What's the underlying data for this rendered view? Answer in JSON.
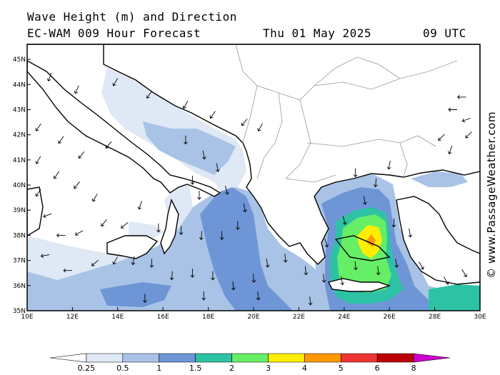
{
  "title": {
    "line1": "Wave Height (m) and Direction",
    "model": "EC-WAM 009 Hour Forecast",
    "date": "Thu 01 May 2025",
    "time": "09 UTC"
  },
  "credit": "© www.PassageWeather.com",
  "map": {
    "lon_range": [
      10,
      30
    ],
    "lat_range": [
      35,
      45.6
    ],
    "lon_ticks": [
      "10E",
      "12E",
      "14E",
      "16E",
      "18E",
      "20E",
      "22E",
      "24E",
      "26E",
      "28E",
      "30E"
    ],
    "lat_ticks": [
      "35N",
      "36N",
      "37N",
      "38N",
      "39N",
      "40N",
      "41N",
      "42N",
      "43N",
      "44N",
      "45N"
    ]
  },
  "colorbar": {
    "labels": [
      "0.25",
      "0.5",
      "1",
      "1.5",
      "2",
      "3",
      "4",
      "5",
      "6",
      "8"
    ],
    "colors": [
      "#ffffff",
      "#dfe8f5",
      "#a9c3e6",
      "#6e96d6",
      "#2ec2a4",
      "#66ee66",
      "#ffee00",
      "#ff9900",
      "#ee3333",
      "#bb0000",
      "#cc00cc"
    ]
  },
  "arrows": [
    [
      11,
      44.3,
      200
    ],
    [
      12.2,
      43.8,
      205
    ],
    [
      13.9,
      44.1,
      210
    ],
    [
      15.4,
      43.6,
      215
    ],
    [
      17,
      43.2,
      210
    ],
    [
      18.2,
      42.8,
      215
    ],
    [
      19.6,
      42.5,
      220
    ],
    [
      20.3,
      42.3,
      210
    ],
    [
      10.5,
      42.3,
      215
    ],
    [
      11.5,
      41.8,
      215
    ],
    [
      12.4,
      41.2,
      220
    ],
    [
      13.6,
      41.6,
      220
    ],
    [
      10.5,
      41.0,
      210
    ],
    [
      11.3,
      40.4,
      215
    ],
    [
      12.2,
      40.0,
      220
    ],
    [
      13.0,
      39.5,
      210
    ],
    [
      10.5,
      39.7,
      215
    ],
    [
      10.9,
      38.8,
      250
    ],
    [
      11.5,
      38.0,
      270
    ],
    [
      12.3,
      38.1,
      240
    ],
    [
      13.4,
      38.5,
      220
    ],
    [
      14.3,
      38.4,
      230
    ],
    [
      15.0,
      39.2,
      200
    ],
    [
      15.8,
      38.3,
      180
    ],
    [
      16.8,
      38.2,
      180
    ],
    [
      17.7,
      38.0,
      185
    ],
    [
      18.6,
      38.0,
      180
    ],
    [
      19.3,
      38.4,
      180
    ],
    [
      19.6,
      39.1,
      170
    ],
    [
      18.8,
      39.8,
      165
    ],
    [
      17.6,
      39.6,
      180
    ],
    [
      18.4,
      40.7,
      170
    ],
    [
      17.8,
      41.2,
      170
    ],
    [
      17.0,
      41.8,
      180
    ],
    [
      17.3,
      40.2,
      180
    ],
    [
      10.8,
      37.2,
      260
    ],
    [
      11.8,
      36.6,
      270
    ],
    [
      13.0,
      36.9,
      230
    ],
    [
      13.9,
      37.0,
      210
    ],
    [
      14.7,
      37.0,
      190
    ],
    [
      15.5,
      36.9,
      180
    ],
    [
      16.4,
      36.4,
      185
    ],
    [
      17.3,
      36.5,
      180
    ],
    [
      18.2,
      36.4,
      180
    ],
    [
      19.1,
      36.0,
      175
    ],
    [
      20.0,
      36.3,
      175
    ],
    [
      20.6,
      36.9,
      170
    ],
    [
      21.4,
      37.1,
      175
    ],
    [
      22.3,
      36.6,
      175
    ],
    [
      23.1,
      36.3,
      175
    ],
    [
      23.9,
      36.2,
      170
    ],
    [
      24.5,
      36.8,
      175
    ],
    [
      25.5,
      36.6,
      175
    ],
    [
      26.3,
      36.9,
      170
    ],
    [
      27.4,
      36.8,
      150
    ],
    [
      28.5,
      36.2,
      150
    ],
    [
      29.3,
      36.5,
      150
    ],
    [
      23.2,
      37.7,
      165
    ],
    [
      24.0,
      38.6,
      165
    ],
    [
      24.9,
      39.4,
      170
    ],
    [
      25.4,
      40.1,
      185
    ],
    [
      24.5,
      40.5,
      180
    ],
    [
      26.0,
      40.8,
      190
    ],
    [
      26.2,
      38.5,
      180
    ],
    [
      26.9,
      38.1,
      170
    ],
    [
      15.2,
      35.5,
      180
    ],
    [
      17.8,
      35.6,
      180
    ],
    [
      20.2,
      35.6,
      175
    ],
    [
      22.5,
      35.4,
      175
    ],
    [
      28.8,
      43.0,
      270
    ],
    [
      29.4,
      42.6,
      250
    ],
    [
      28.3,
      41.9,
      225
    ],
    [
      29.5,
      42.0,
      225
    ],
    [
      28.7,
      41.4,
      200
    ],
    [
      29.2,
      43.5,
      270
    ]
  ]
}
